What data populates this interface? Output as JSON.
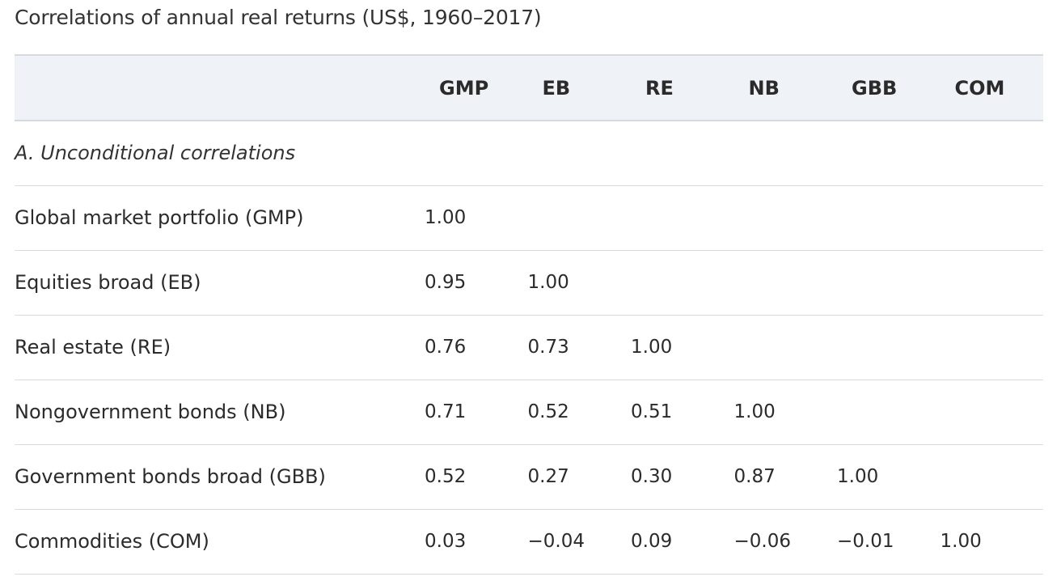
{
  "caption": "Correlations of annual real returns (US$, 1960–2017)",
  "columns": [
    "GMP",
    "EB",
    "RE",
    "NB",
    "GBB",
    "COM"
  ],
  "section_a": "A. Unconditional correlations",
  "rows": [
    {
      "label": "Global market portfolio (GMP)",
      "values": [
        "1.00",
        "",
        "",
        "",
        "",
        ""
      ]
    },
    {
      "label": "Equities broad (EB)",
      "values": [
        "0.95",
        "1.00",
        "",
        "",
        "",
        ""
      ]
    },
    {
      "label": "Real estate (RE)",
      "values": [
        "0.76",
        "0.73",
        "1.00",
        "",
        "",
        ""
      ]
    },
    {
      "label": "Nongovernment bonds (NB)",
      "values": [
        "0.71",
        "0.52",
        "0.51",
        "1.00",
        "",
        ""
      ]
    },
    {
      "label": "Government bonds broad (GBB)",
      "values": [
        "0.52",
        "0.27",
        "0.30",
        "0.87",
        "1.00",
        ""
      ]
    },
    {
      "label": "Commodities (COM)",
      "values": [
        "0.03",
        "−0.04",
        "0.09",
        "−0.06",
        "−0.01",
        "1.00"
      ]
    }
  ]
}
